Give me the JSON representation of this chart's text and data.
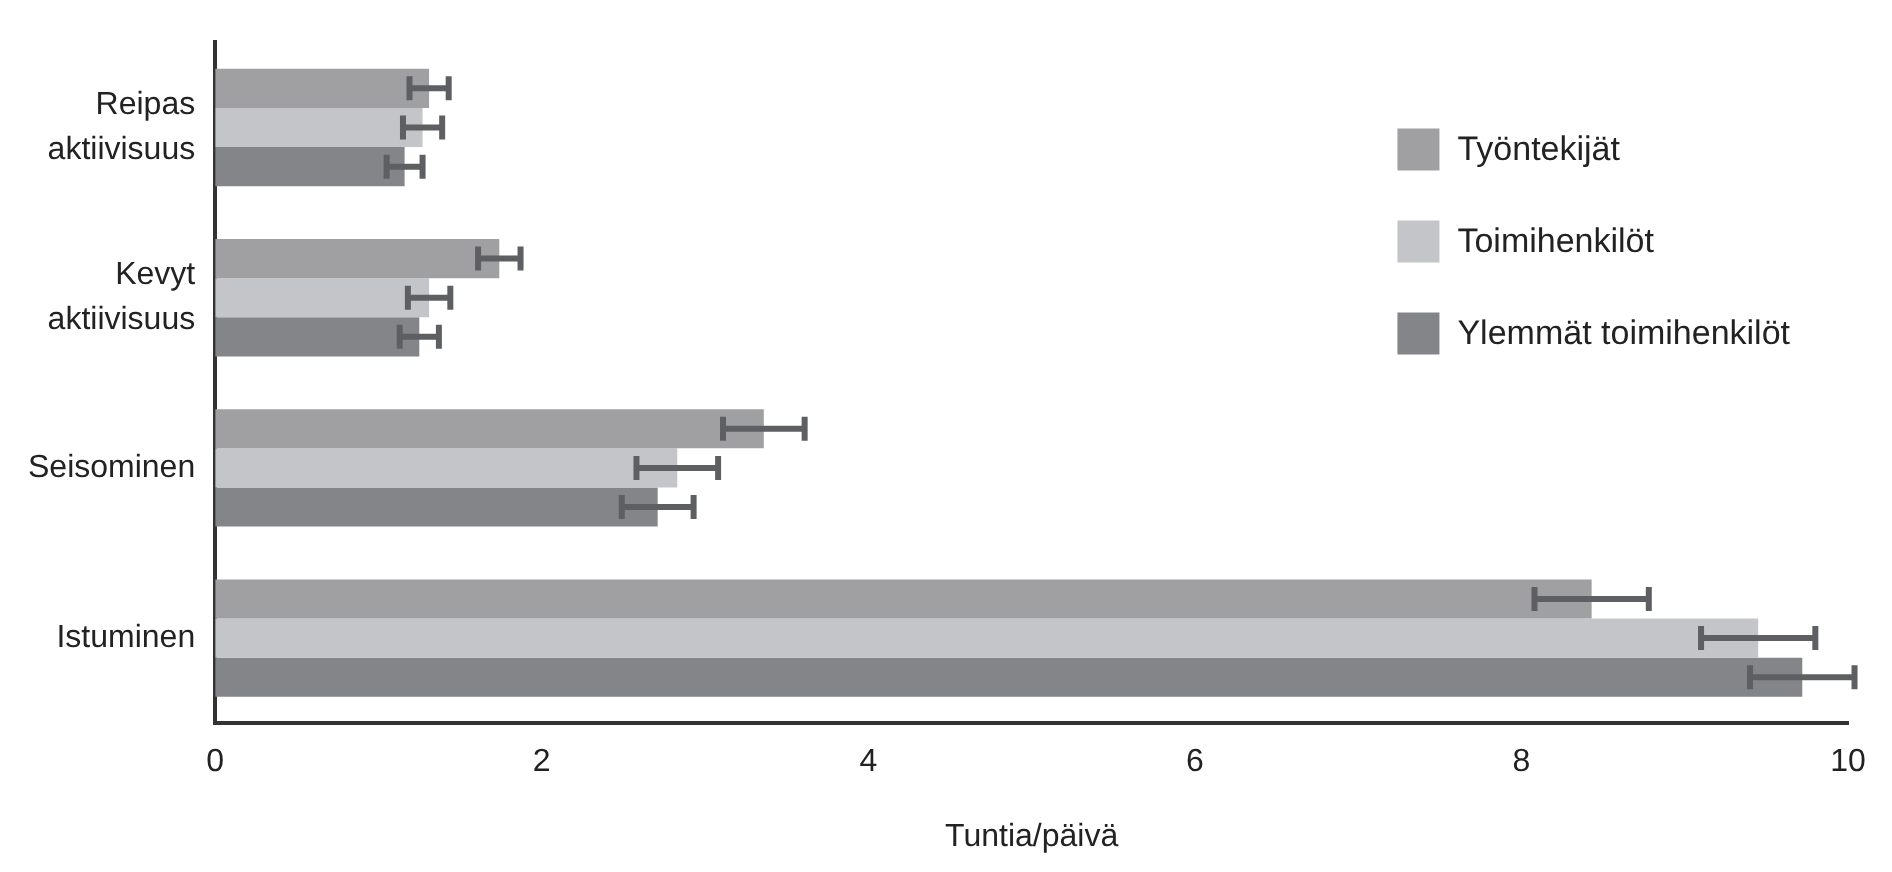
{
  "chart_data": {
    "type": "bar",
    "orientation": "horizontal",
    "xlabel": "Tuntia/päivä",
    "categories": [
      "Reipas aktiivisuus",
      "Kevyt aktiivisuus",
      "Seisominen",
      "Istuminen"
    ],
    "series": [
      {
        "name": "Työntekijät",
        "color": "#a0a0a2",
        "values": [
          1.31,
          1.74,
          3.36,
          8.43
        ],
        "errors": [
          0.12,
          0.13,
          0.25,
          0.35
        ]
      },
      {
        "name": "Toimihenkilöt",
        "color": "#c4c5c8",
        "values": [
          1.27,
          1.31,
          2.83,
          9.45
        ],
        "errors": [
          0.12,
          0.13,
          0.25,
          0.35
        ]
      },
      {
        "name": "Ylemmät toimihenkilöt",
        "color": "#848588",
        "values": [
          1.16,
          1.25,
          2.71,
          9.72
        ],
        "errors": [
          0.11,
          0.12,
          0.22,
          0.32
        ]
      }
    ],
    "xlim": [
      0,
      10
    ],
    "xticks": [
      0,
      2,
      4,
      6,
      8,
      10
    ],
    "grid": false,
    "legend": "top right"
  }
}
